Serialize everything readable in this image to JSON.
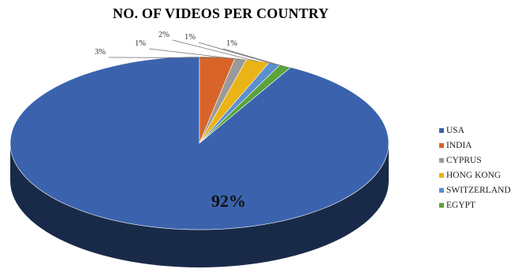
{
  "chart_data": {
    "type": "pie",
    "title": "NO. OF VIDEOS PER COUNTRY",
    "categories": [
      "USA",
      "INDIA",
      "CYPRUS",
      "HONG KONG",
      "SWITZERLAND",
      "EGYPT"
    ],
    "values": [
      92,
      3,
      1,
      2,
      1,
      1
    ],
    "labels": [
      "92%",
      "3%",
      "1%",
      "2%",
      "1%",
      "1%"
    ],
    "colors": [
      "#3b63ad",
      "#d8642a",
      "#9a9a9a",
      "#eab316",
      "#5b8fcf",
      "#5aa33c"
    ],
    "legend_position": "right",
    "style": "3d"
  }
}
